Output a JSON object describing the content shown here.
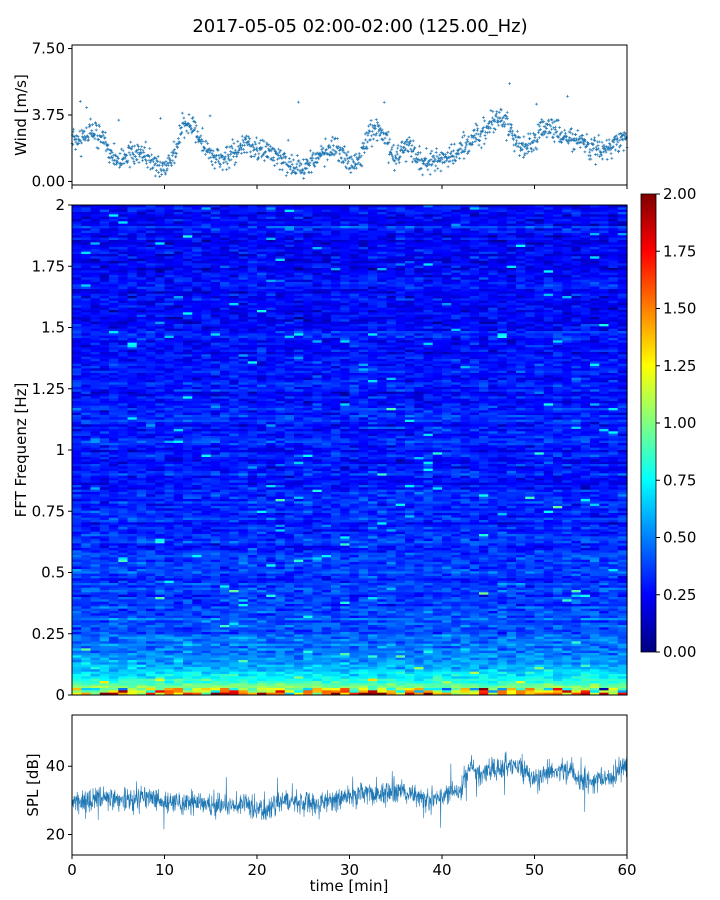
{
  "title": "2017-05-05 02:00-02:00 (125.00_Hz)",
  "colors": {
    "series": "#1f77b4",
    "cmap": [
      "#000080",
      "#0000ff",
      "#0080ff",
      "#00ffff",
      "#80ff80",
      "#ffff00",
      "#ff8000",
      "#ff0000",
      "#800000"
    ]
  },
  "chart_data": [
    {
      "type": "scatter",
      "panel": "wind",
      "ylabel": "Wind [m/s]",
      "yticks": [
        "0.00",
        "3.75",
        "7.50"
      ],
      "ylim": [
        -0.2,
        7.7
      ],
      "xlim": [
        0,
        60
      ],
      "x_unit": "min",
      "marker": "+",
      "trend": [
        [
          0,
          2.6
        ],
        [
          1,
          2.3
        ],
        [
          2,
          2.9
        ],
        [
          3,
          2.6
        ],
        [
          4,
          1.7
        ],
        [
          5,
          1.1
        ],
        [
          6,
          1.5
        ],
        [
          7,
          1.4
        ],
        [
          8,
          1.6
        ],
        [
          9,
          0.9
        ],
        [
          10,
          0.8
        ],
        [
          11,
          1.3
        ],
        [
          12,
          3.3
        ],
        [
          13,
          3.1
        ],
        [
          14,
          2.2
        ],
        [
          15,
          1.5
        ],
        [
          16,
          1.2
        ],
        [
          17,
          1.3
        ],
        [
          18,
          1.9
        ],
        [
          19,
          2.1
        ],
        [
          20,
          1.7
        ],
        [
          21,
          1.8
        ],
        [
          22,
          1.4
        ],
        [
          23,
          1.1
        ],
        [
          24,
          0.9
        ],
        [
          25,
          0.8
        ],
        [
          26,
          1.1
        ],
        [
          27,
          1.6
        ],
        [
          28,
          1.9
        ],
        [
          29,
          1.7
        ],
        [
          30,
          0.9
        ],
        [
          31,
          1.2
        ],
        [
          32,
          2.5
        ],
        [
          33,
          3.1
        ],
        [
          34,
          2.2
        ],
        [
          35,
          1.3
        ],
        [
          36,
          2.1
        ],
        [
          37,
          1.7
        ],
        [
          38,
          0.9
        ],
        [
          39,
          1.3
        ],
        [
          40,
          1.2
        ],
        [
          41,
          1.4
        ],
        [
          42,
          1.7
        ],
        [
          43,
          2.4
        ],
        [
          44,
          2.6
        ],
        [
          45,
          3.1
        ],
        [
          46,
          3.6
        ],
        [
          47,
          3.3
        ],
        [
          48,
          2.2
        ],
        [
          49,
          1.9
        ],
        [
          50,
          2.3
        ],
        [
          51,
          3.2
        ],
        [
          52,
          3.0
        ],
        [
          53,
          2.4
        ],
        [
          54,
          2.5
        ],
        [
          55,
          2.3
        ],
        [
          56,
          1.8
        ],
        [
          57,
          1.7
        ],
        [
          58,
          1.9
        ],
        [
          59,
          2.2
        ],
        [
          60,
          2.6
        ]
      ]
    },
    {
      "type": "heatmap",
      "panel": "spectrogram",
      "ylabel": "FFT Frequenz [Hz]",
      "yticks": [
        "0",
        "0.25",
        "0.5",
        "0.75",
        "1",
        "1.25",
        "1.5",
        "1.75",
        "2"
      ],
      "ylim": [
        0,
        2
      ],
      "xlim": [
        0,
        60
      ],
      "colorbar": {
        "ticks": [
          "0.00",
          "0.25",
          "0.50",
          "0.75",
          "1.00",
          "1.25",
          "1.50",
          "1.75",
          "2.00"
        ],
        "range": [
          0,
          2
        ]
      },
      "freq_profile": [
        [
          0.0,
          1.6
        ],
        [
          0.02,
          1.2
        ],
        [
          0.05,
          0.85
        ],
        [
          0.1,
          0.6
        ],
        [
          0.2,
          0.48
        ],
        [
          0.3,
          0.4
        ],
        [
          0.5,
          0.35
        ],
        [
          1.0,
          0.3
        ],
        [
          1.5,
          0.27
        ],
        [
          2.0,
          0.25
        ]
      ]
    },
    {
      "type": "line",
      "panel": "spl",
      "ylabel": "SPL [dB]",
      "xlabel": "time [min]",
      "yticks": [
        "20",
        "40"
      ],
      "ylim": [
        14,
        55
      ],
      "xlim": [
        0,
        60
      ],
      "xticks": [
        "0",
        "10",
        "20",
        "30",
        "40",
        "50",
        "60"
      ],
      "trend": [
        [
          0,
          29
        ],
        [
          2,
          30
        ],
        [
          4,
          31
        ],
        [
          6,
          30
        ],
        [
          8,
          31
        ],
        [
          10,
          30
        ],
        [
          12,
          29
        ],
        [
          14,
          29
        ],
        [
          16,
          28
        ],
        [
          18,
          29
        ],
        [
          20,
          28
        ],
        [
          21,
          26
        ],
        [
          22,
          29
        ],
        [
          24,
          30
        ],
        [
          26,
          29
        ],
        [
          28,
          30
        ],
        [
          30,
          31
        ],
        [
          32,
          32
        ],
        [
          34,
          32
        ],
        [
          36,
          33
        ],
        [
          38,
          30
        ],
        [
          40,
          31
        ],
        [
          42,
          33
        ],
        [
          43,
          40
        ],
        [
          44,
          38
        ],
        [
          46,
          39
        ],
        [
          48,
          41
        ],
        [
          50,
          36
        ],
        [
          52,
          39
        ],
        [
          54,
          38
        ],
        [
          56,
          35
        ],
        [
          58,
          36
        ],
        [
          60,
          41
        ]
      ]
    }
  ]
}
